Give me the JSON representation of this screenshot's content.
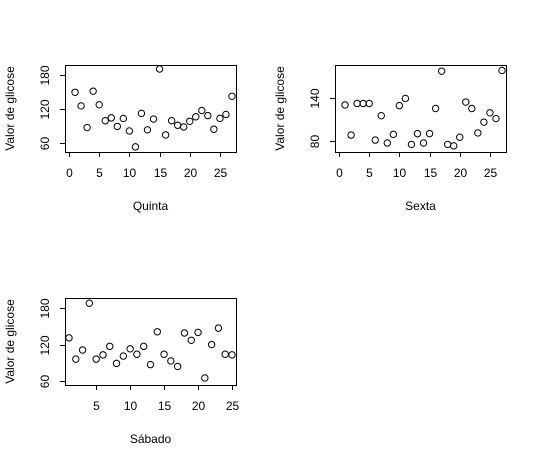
{
  "chart_data": [
    {
      "type": "scatter",
      "xlabel": "Quinta",
      "ylabel": "Valor de glicose",
      "xlim": [
        0,
        27
      ],
      "ylim": [
        51,
        190
      ],
      "xticks": [
        0,
        5,
        10,
        15,
        20,
        25
      ],
      "yticks": [
        60,
        120,
        180
      ],
      "x": [
        1,
        2,
        3,
        4,
        5,
        6,
        7,
        8,
        9,
        10,
        11,
        12,
        13,
        14,
        15,
        16,
        17,
        18,
        19,
        20,
        21,
        22,
        23,
        24,
        25,
        26,
        27
      ],
      "y": [
        149,
        125,
        87,
        151,
        127,
        99,
        104,
        89,
        103,
        81,
        53,
        112,
        83,
        102,
        190,
        74,
        99,
        91,
        88,
        98,
        106,
        117,
        108,
        84,
        103,
        110,
        142
      ]
    },
    {
      "type": "scatter",
      "xlabel": "Sexta",
      "ylabel": "Valor de glicose",
      "xlim": [
        0,
        27
      ],
      "ylim": [
        70,
        180
      ],
      "xticks": [
        0,
        5,
        10,
        15,
        20,
        25
      ],
      "yticks": [
        80,
        140
      ],
      "x": [
        1,
        2,
        3,
        4,
        5,
        6,
        7,
        8,
        9,
        10,
        11,
        12,
        13,
        14,
        15,
        16,
        17,
        18,
        19,
        20,
        21,
        22,
        23,
        24,
        25,
        26,
        27
      ],
      "y": [
        130,
        88,
        132,
        132,
        132,
        81,
        115,
        77,
        89,
        129,
        139,
        75,
        90,
        77,
        90,
        125,
        177,
        75,
        73,
        85,
        134,
        125,
        91,
        106,
        119,
        111,
        178
      ]
    },
    {
      "type": "scatter",
      "xlabel": "Sábado",
      "ylabel": "Valor de glicose",
      "xlim": [
        1,
        25
      ],
      "ylim": [
        60,
        190
      ],
      "xticks": [
        5,
        10,
        15,
        20,
        25
      ],
      "yticks": [
        60,
        120,
        180
      ],
      "x": [
        1,
        2,
        3,
        4,
        5,
        6,
        7,
        8,
        9,
        10,
        11,
        12,
        13,
        14,
        15,
        16,
        17,
        18,
        19,
        20,
        21,
        22,
        23,
        24,
        25
      ],
      "y": [
        131,
        96,
        111,
        188,
        96,
        103,
        117,
        89,
        101,
        113,
        104,
        117,
        87,
        141,
        104,
        93,
        84,
        139,
        127,
        140,
        65,
        120,
        147,
        104,
        103
      ]
    }
  ]
}
